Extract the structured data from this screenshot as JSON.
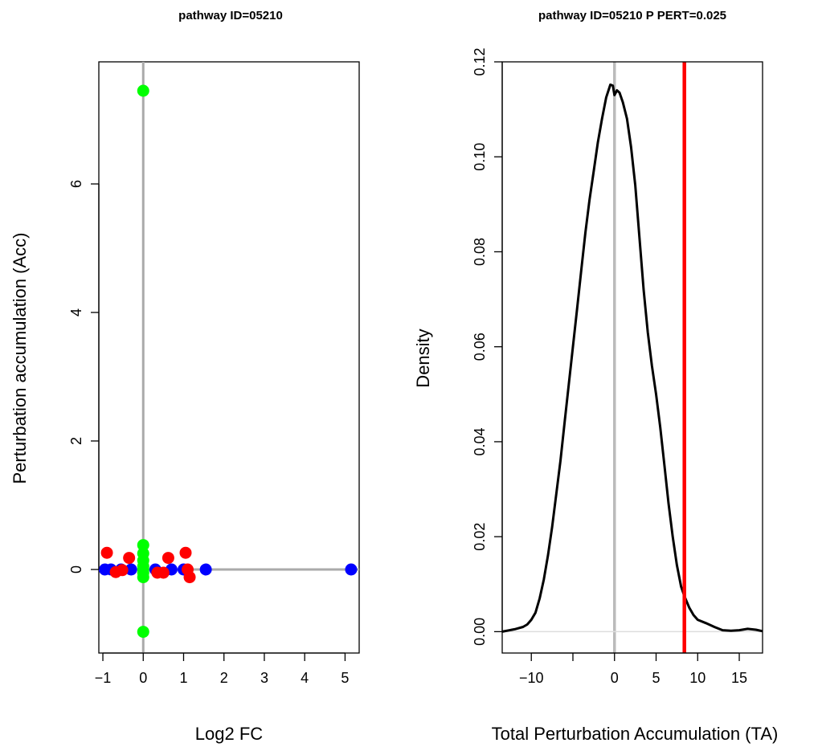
{
  "chart_data": [
    {
      "type": "scatter",
      "title": "pathway ID=05210",
      "xlabel": "Log2 FC",
      "ylabel": "Perturbation accumulation (Acc)",
      "xlim": [
        -1.1,
        5.35
      ],
      "ylim": [
        -1.3,
        7.9
      ],
      "xticks": [
        -1,
        0,
        1,
        2,
        3,
        4,
        5
      ],
      "yticks": [
        0,
        2,
        4,
        6
      ],
      "reference_lines": [
        {
          "orientation": "vertical",
          "value": 0,
          "color": "#aaaaaa"
        },
        {
          "orientation": "horizontal",
          "value": 0,
          "color": "#aaaaaa"
        }
      ],
      "grid": false,
      "legend": "none",
      "series": [
        {
          "color": "#0000ff",
          "points": [
            {
              "x": -0.95,
              "y": 0.0
            },
            {
              "x": -0.8,
              "y": 0.0
            },
            {
              "x": -0.55,
              "y": 0.0
            },
            {
              "x": -0.3,
              "y": 0.0
            },
            {
              "x": 0.3,
              "y": 0.0
            },
            {
              "x": 0.7,
              "y": 0.0
            },
            {
              "x": 1.0,
              "y": 0.0
            },
            {
              "x": 1.55,
              "y": 0.0
            },
            {
              "x": 5.15,
              "y": 0.0
            }
          ]
        },
        {
          "color": "#ff0000",
          "points": [
            {
              "x": -0.9,
              "y": 0.26
            },
            {
              "x": -0.68,
              "y": -0.04
            },
            {
              "x": -0.52,
              "y": -0.01
            },
            {
              "x": -0.35,
              "y": 0.18
            },
            {
              "x": 0.35,
              "y": -0.05
            },
            {
              "x": 0.5,
              "y": -0.05
            },
            {
              "x": 0.62,
              "y": 0.18
            },
            {
              "x": 1.05,
              "y": 0.26
            },
            {
              "x": 1.1,
              "y": 0.0
            },
            {
              "x": 1.15,
              "y": -0.12
            }
          ]
        },
        {
          "color": "#00ff00",
          "points": [
            {
              "x": 0.0,
              "y": 7.45
            },
            {
              "x": 0.0,
              "y": 0.38
            },
            {
              "x": 0.0,
              "y": 0.25
            },
            {
              "x": 0.0,
              "y": 0.14
            },
            {
              "x": 0.0,
              "y": 0.05
            },
            {
              "x": 0.0,
              "y": 0.0
            },
            {
              "x": 0.0,
              "y": -0.05
            },
            {
              "x": 0.0,
              "y": -0.12
            },
            {
              "x": 0.0,
              "y": -0.97
            }
          ]
        }
      ]
    },
    {
      "type": "line",
      "title": "pathway ID=05210  P PERT=0.025",
      "xlabel": "Total Perturbation Accumulation (TA)",
      "ylabel": "Density",
      "xlim": [
        -13.5,
        17.8
      ],
      "ylim": [
        -0.0045,
        0.12
      ],
      "xticks": [
        -10,
        -5,
        0,
        5,
        10,
        15
      ],
      "xtick_labels": [
        "−10",
        "",
        "0",
        "5",
        "10",
        "15"
      ],
      "yticks": [
        0.0,
        0.02,
        0.04,
        0.06,
        0.08,
        0.1,
        0.12
      ],
      "ytick_labels": [
        "0.00",
        "0.02",
        "0.04",
        "0.06",
        "0.08",
        "0.10",
        "0.12"
      ],
      "reference_lines": [
        {
          "orientation": "vertical",
          "value": 0,
          "color": "#bbbbbb"
        },
        {
          "orientation": "horizontal",
          "value": 0,
          "color": "#dddddd"
        },
        {
          "orientation": "vertical",
          "value": 8.4,
          "color": "#ff0000"
        }
      ],
      "grid": false,
      "legend": "none",
      "series": [
        {
          "color": "#000000",
          "x": [
            -13.5,
            -12,
            -11,
            -10.5,
            -10,
            -9.5,
            -9,
            -8.5,
            -8,
            -7.5,
            -7,
            -6.5,
            -6,
            -5.5,
            -5,
            -4.5,
            -4,
            -3.5,
            -3,
            -2.5,
            -2,
            -1.5,
            -1,
            -0.5,
            -0.2,
            0,
            0.3,
            0.6,
            1,
            1.5,
            2,
            2.5,
            3,
            3.5,
            4,
            4.5,
            5,
            5.5,
            6,
            6.5,
            7,
            7.5,
            8,
            8.4,
            9,
            9.5,
            10,
            11,
            12,
            13,
            14,
            15,
            16,
            17,
            17.8
          ],
          "y": [
            0.0,
            0.0005,
            0.001,
            0.0015,
            0.0025,
            0.004,
            0.007,
            0.011,
            0.016,
            0.022,
            0.029,
            0.036,
            0.044,
            0.052,
            0.06,
            0.068,
            0.076,
            0.084,
            0.091,
            0.097,
            0.103,
            0.108,
            0.1125,
            0.1152,
            0.115,
            0.113,
            0.114,
            0.1135,
            0.1115,
            0.108,
            0.102,
            0.094,
            0.083,
            0.072,
            0.063,
            0.056,
            0.05,
            0.043,
            0.035,
            0.027,
            0.02,
            0.014,
            0.0095,
            0.0075,
            0.005,
            0.0035,
            0.0025,
            0.0018,
            0.001,
            0.0003,
            0.0002,
            0.0003,
            0.0006,
            0.0004,
            0.0001
          ]
        }
      ]
    }
  ]
}
